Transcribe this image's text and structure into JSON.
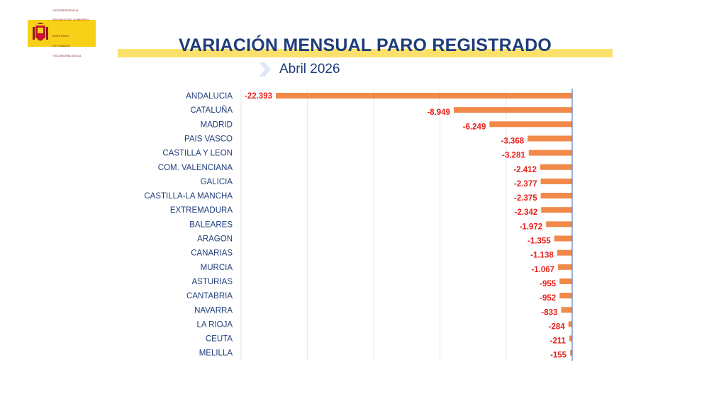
{
  "header": {
    "logo_lines": [
      "VICEPRESIDENCIA",
      "SEGUNDA DEL GOBIERNO",
      "",
      "MINISTERIO",
      "DE TRABAJO",
      "Y ECONOMÍA SOCIAL"
    ],
    "title": "VARIACIÓN MENSUAL PARO REGISTRADO",
    "subtitle": "Abril 2026"
  },
  "colors": {
    "bar": "#f0894a",
    "value_label": "#e8201a",
    "category_label": "#1f3d7a",
    "title": "#1f3d7a",
    "accent": "#fbe16b",
    "axis": "#5b7bc4",
    "grid": "#e6e6e6"
  },
  "chart_data": {
    "type": "bar",
    "orientation": "horizontal",
    "categories": [
      "ANDALUCIA",
      "CATALUÑA",
      "MADRID",
      "PAIS VASCO",
      "CASTILLA Y LEON",
      "COM. VALENCIANA",
      "GALICIA",
      "CASTILLA-LA MANCHA",
      "EXTREMADURA",
      "BALEARES",
      "ARAGON",
      "CANARIAS",
      "MURCIA",
      "ASTURIAS",
      "CANTABRIA",
      "NAVARRA",
      "LA RIOJA",
      "CEUTA",
      "MELILLA"
    ],
    "values": [
      -22393,
      -8949,
      -6249,
      -3368,
      -3281,
      -2412,
      -2377,
      -2375,
      -2342,
      -1972,
      -1355,
      -1138,
      -1067,
      -955,
      -952,
      -833,
      -284,
      -211,
      -155
    ],
    "labels": [
      "-22.393",
      "-8.949",
      "-6.249",
      "-3.368",
      "-3.281",
      "-2.412",
      "-2.377",
      "-2.375",
      "-2.342",
      "-1.972",
      "-1.355",
      "-1.138",
      "-1.067",
      "-955",
      "-952",
      "-833",
      "-284",
      "-211",
      "-155"
    ],
    "xlim": [
      -25000,
      0
    ],
    "grid": true,
    "legend": "none"
  }
}
